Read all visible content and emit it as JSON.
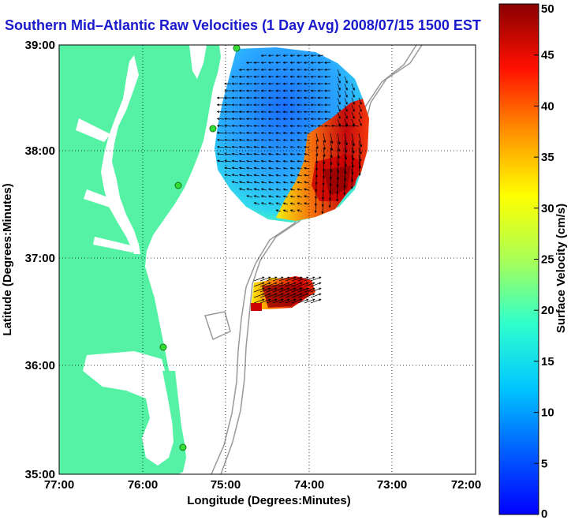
{
  "title": "Southern Mid–Atlantic Raw Velocities (1 Day Avg) 2008/07/15 1500 EST",
  "x_axis": {
    "label": "Longitude (Degrees:Minutes)",
    "ticks": [
      "77:00",
      "76:00",
      "75:00",
      "74:00",
      "73:00",
      "72:00"
    ]
  },
  "y_axis": {
    "label": "Latitude (Degrees:Minutes)",
    "ticks": [
      "39:00",
      "38:00",
      "37:00",
      "36:00",
      "35:00"
    ]
  },
  "colorbar": {
    "label": "Surface Velocity (cm/s)",
    "ticks": [
      "50",
      "45",
      "40",
      "35",
      "30",
      "25",
      "20",
      "15",
      "10",
      "5",
      "0"
    ],
    "min": 0,
    "max": 50
  },
  "colors": {
    "land": "#55f2a5",
    "title": "#1a1acc",
    "bathymetry": "#999999",
    "station": "#33dd33"
  }
}
